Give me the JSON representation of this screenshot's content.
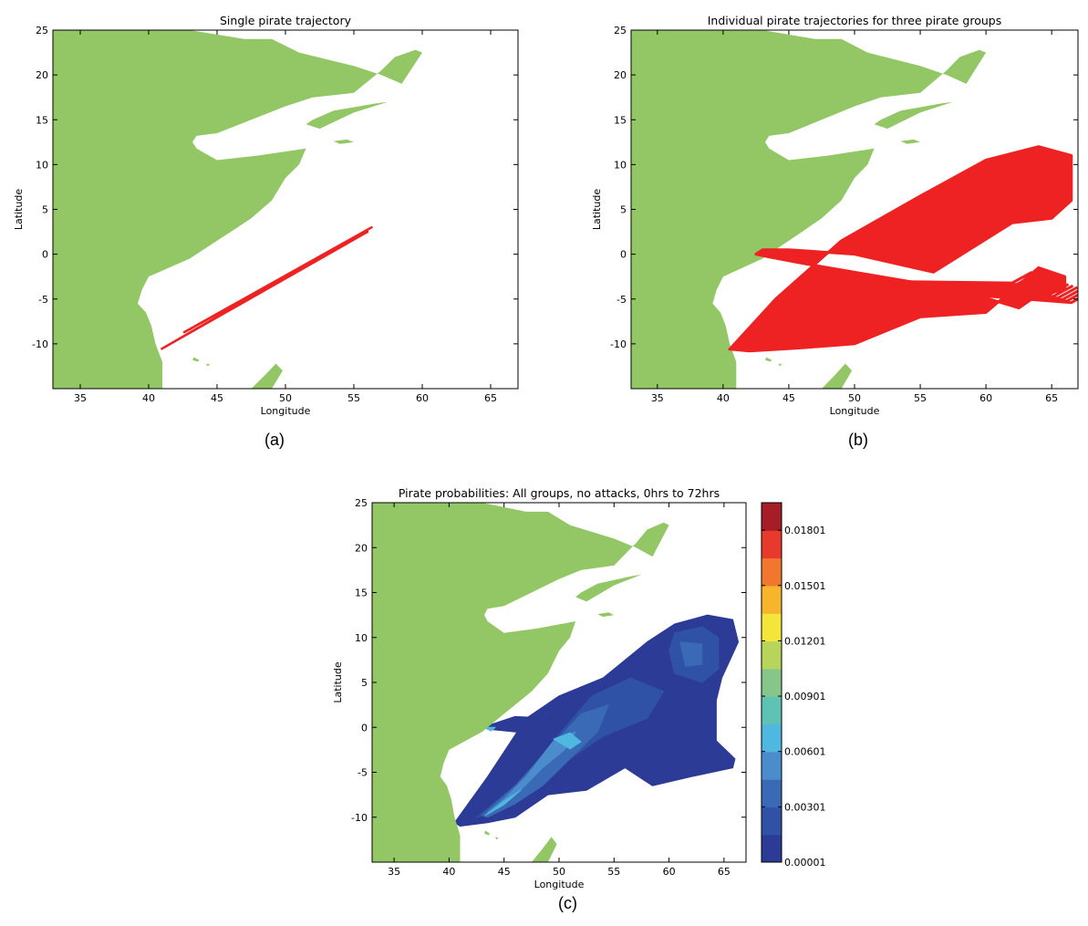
{
  "figure": {
    "colors": {
      "land": "#93c766",
      "sea": "#ffffff",
      "trajectory": "#ee2222",
      "frame": "#000000"
    }
  },
  "chart_data": [
    {
      "type": "line",
      "id": "a",
      "title": "Single pirate trajectory",
      "xlabel": "Longitude",
      "ylabel": "Latitude",
      "xlim": [
        33,
        67
      ],
      "ylim": [
        -15,
        25
      ],
      "xticks": [
        "35",
        "40",
        "45",
        "50",
        "55",
        "60",
        "65"
      ],
      "yticks": [
        "25",
        "20",
        "15",
        "10",
        "5",
        "0",
        "-5",
        "-10"
      ],
      "caption": "(a)",
      "series": [
        {
          "x": [
            40.9,
            56.3,
            42.6,
            56.0,
            40.9
          ],
          "y": [
            -10.6,
            3.0,
            -8.7,
            2.5,
            -10.6
          ]
        }
      ]
    },
    {
      "type": "line",
      "id": "b",
      "title": "Individual pirate trajectories for three pirate groups",
      "xlabel": "Longitude",
      "ylabel": "Latitude",
      "xlim": [
        33,
        67
      ],
      "ylim": [
        -15,
        25
      ],
      "xticks": [
        "35",
        "40",
        "45",
        "50",
        "55",
        "60",
        "65"
      ],
      "yticks": [
        "25",
        "20",
        "15",
        "10",
        "5",
        "0",
        "-5",
        "-10"
      ],
      "caption": "(b)",
      "series": [
        {
          "x": [
            40.5,
            44.0,
            49.0,
            55.0,
            60.0,
            64.0,
            66.5,
            66.5,
            65.0,
            62.0,
            56.0,
            50.0,
            45.0,
            43.0,
            42.5,
            43.5,
            46.0,
            52.0,
            58.0,
            62.5,
            64.0,
            66.0,
            66.0,
            64.0,
            60.0,
            55.0,
            50.0,
            45.5,
            42.0,
            40.5
          ],
          "y": [
            -10.6,
            -5.0,
            1.5,
            6.5,
            10.5,
            12.0,
            11.0,
            6.0,
            4.0,
            3.5,
            -2.0,
            0.0,
            0.5,
            0.5,
            0.0,
            -0.3,
            -1.0,
            -2.5,
            -4.0,
            -6.0,
            -4.5,
            -4.0,
            -2.5,
            -1.5,
            -6.5,
            -7.0,
            -10.0,
            -10.5,
            -10.8,
            -10.6
          ]
        }
      ]
    },
    {
      "type": "heatmap",
      "id": "c",
      "title": "Pirate probabilities: All groups, no attacks, 0hrs to 72hrs",
      "xlabel": "Longitude",
      "ylabel": "Latitude",
      "xlim": [
        33,
        67
      ],
      "ylim": [
        -15,
        25
      ],
      "xticks": [
        "35",
        "40",
        "45",
        "50",
        "55",
        "60",
        "65"
      ],
      "yticks": [
        "25",
        "20",
        "15",
        "10",
        "5",
        "0",
        "-5",
        "-10"
      ],
      "caption": "(c)",
      "colorbar": {
        "levels": [
          1e-05,
          0.0015,
          0.003,
          0.0045,
          0.006,
          0.0075,
          0.009,
          0.0105,
          0.012,
          0.0135,
          0.015,
          0.0165,
          0.018,
          0.0195
        ],
        "colors": [
          "#2c3b96",
          "#2f52a6",
          "#3a69b5",
          "#4b8ccc",
          "#4fb8e0",
          "#5ec3b4",
          "#86c68a",
          "#b9d45a",
          "#f3e53a",
          "#f7b52e",
          "#f2772e",
          "#e73a2c",
          "#a51d26"
        ],
        "tick_labels": [
          "0.00001",
          "0.00301",
          "0.00601",
          "0.00901",
          "0.01201",
          "0.01501",
          "0.01801"
        ],
        "tick_values": [
          1e-05,
          0.00301,
          0.00601,
          0.00901,
          0.01201,
          0.01501,
          0.01801
        ]
      },
      "regions": [
        {
          "level": 1e-05,
          "x": [
            40.5,
            43.5,
            47.0,
            50.0,
            54.0,
            58.0,
            60.5,
            63.5,
            65.8,
            66.3,
            64.8,
            64.3,
            64.3,
            66.0,
            65.8,
            62.0,
            58.5,
            56.0,
            52.5,
            49.0,
            46.0,
            43.5,
            41.0,
            40.5
          ],
          "y": [
            -10.6,
            -5.5,
            1.0,
            3.5,
            5.5,
            9.5,
            11.5,
            12.5,
            12.0,
            9.5,
            5.5,
            3.0,
            -1.5,
            -3.5,
            -4.5,
            -5.5,
            -6.5,
            -4.5,
            -7.0,
            -7.5,
            -10.0,
            -10.6,
            -11.0,
            -10.6
          ]
        },
        {
          "level": 1e-05,
          "x": [
            43.0,
            46.0,
            49.5,
            49.0,
            46.0,
            43.5,
            43.0
          ],
          "y": [
            0.0,
            1.2,
            1.0,
            -0.5,
            -0.5,
            -0.2,
            0.0
          ]
        },
        {
          "level": 0.0015,
          "x": [
            42.5,
            46.5,
            49.5,
            53.0,
            56.5,
            59.5,
            58.0,
            54.0,
            51.0,
            48.0,
            45.0,
            42.5
          ],
          "y": [
            -10.0,
            -6.0,
            -1.5,
            3.5,
            5.5,
            4.0,
            1.0,
            -1.0,
            -3.5,
            -6.5,
            -9.0,
            -10.0
          ]
        },
        {
          "level": 0.0015,
          "x": [
            60.5,
            63.0,
            64.5,
            64.5,
            63.0,
            60.5,
            60.0,
            60.5
          ],
          "y": [
            10.5,
            11.2,
            10.0,
            6.5,
            5.0,
            6.0,
            8.5,
            10.5
          ]
        },
        {
          "level": 0.003,
          "x": [
            43.0,
            46.0,
            49.0,
            52.0,
            54.5,
            53.5,
            51.0,
            48.5,
            46.0,
            43.5,
            43.0
          ],
          "y": [
            -9.8,
            -6.5,
            -2.5,
            1.5,
            2.5,
            -0.5,
            -3.5,
            -6.5,
            -8.5,
            -10.0,
            -9.8
          ]
        },
        {
          "level": 0.003,
          "x": [
            61.0,
            63.0,
            63.0,
            61.5,
            61.0
          ],
          "y": [
            9.5,
            9.3,
            7.0,
            6.8,
            9.5
          ]
        },
        {
          "level": 0.0045,
          "x": [
            43.5,
            45.0,
            47.0,
            49.5,
            51.5,
            50.5,
            48.5,
            46.5,
            44.5,
            43.5
          ],
          "y": [
            -9.5,
            -8.0,
            -5.5,
            -1.5,
            -0.5,
            -2.5,
            -4.5,
            -7.0,
            -9.0,
            -9.5
          ]
        },
        {
          "level": 0.006,
          "x": [
            49.5,
            51.0,
            52.0,
            51.0,
            49.5
          ],
          "y": [
            -1.3,
            -0.6,
            -1.6,
            -2.4,
            -1.3
          ]
        },
        {
          "level": 0.006,
          "x": [
            43.3,
            45.0,
            46.5,
            45.0,
            43.3
          ],
          "y": [
            -9.8,
            -8.2,
            -7.0,
            -8.6,
            -9.8
          ]
        },
        {
          "level": 0.006,
          "x": [
            43.2,
            44.2,
            43.8,
            43.2
          ],
          "y": [
            0.0,
            0.0,
            -0.4,
            0.0
          ]
        }
      ]
    }
  ],
  "map_features": {
    "land": [
      {
        "x": [
          33,
          37.5,
          38.5,
          40.0,
          41.5,
          43.0,
          45.0,
          47.0,
          49.0,
          51.0,
          55.0,
          57.0,
          58.5,
          60.0,
          59.5,
          58.0,
          57.0,
          55.0,
          52.0,
          50.0,
          47.5,
          45.0,
          43.5,
          43.2,
          43.5,
          45.0,
          48.0,
          51.5,
          51.0,
          50.0,
          49.0,
          47.5,
          46.0,
          44.5,
          43.0,
          41.5,
          40.0,
          39.5,
          39.2,
          39.8,
          40.2,
          40.5,
          41.0,
          41.0,
          33
        ],
        "y": [
          25,
          25,
          25,
          25,
          25,
          25,
          24.5,
          24.0,
          24.0,
          22.5,
          21.0,
          20.0,
          19.0,
          22.5,
          22.8,
          22.0,
          20.5,
          18.0,
          17.5,
          16.5,
          15.0,
          13.5,
          13.2,
          12.5,
          11.8,
          10.5,
          11.0,
          11.8,
          10.0,
          8.5,
          6.0,
          4.0,
          2.5,
          1.0,
          -0.5,
          -1.5,
          -2.5,
          -4.0,
          -5.5,
          -6.5,
          -8.0,
          -10.0,
          -12.0,
          -15.0,
          -15.0
        ]
      },
      {
        "x": [
          51.5,
          52.5,
          55.0,
          57.5,
          56.5,
          53.5,
          52.0,
          51.5
        ],
        "y": [
          14.5,
          14.0,
          15.8,
          17.0,
          16.8,
          16.0,
          15.0,
          14.5
        ]
      },
      {
        "x": [
          53.5,
          54.5,
          55.0,
          54.0,
          53.5
        ],
        "y": [
          12.6,
          12.8,
          12.5,
          12.3,
          12.6
        ]
      },
      {
        "x": [
          47.5,
          48.5,
          49.3,
          49.8,
          49.0,
          48.0,
          47.5
        ],
        "y": [
          -15.0,
          -13.5,
          -12.2,
          -13.0,
          -15.0,
          -15.0,
          -15.0
        ]
      },
      {
        "x": [
          43.3,
          43.7,
          43.6,
          43.2,
          43.3
        ],
        "y": [
          -11.5,
          -11.8,
          -12.0,
          -11.8,
          -11.5
        ]
      },
      {
        "x": [
          44.2,
          44.5,
          44.3,
          44.2
        ],
        "y": [
          -12.2,
          -12.3,
          -12.5,
          -12.2
        ]
      }
    ]
  }
}
